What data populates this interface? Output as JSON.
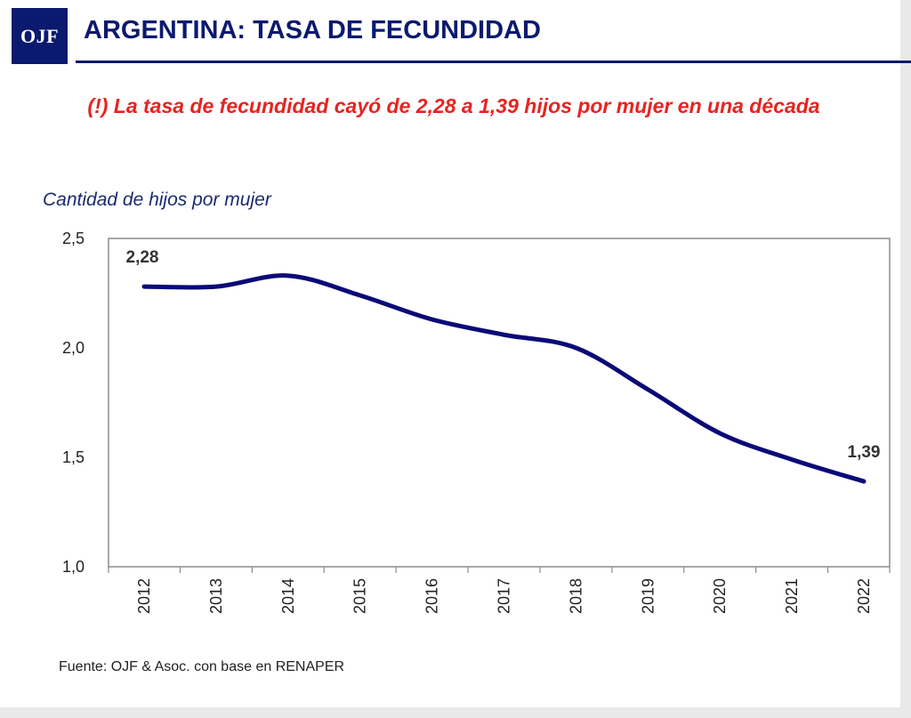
{
  "header": {
    "logo_text": "OJF",
    "title": "ARGENTINA: TASA DE FECUNDIDAD"
  },
  "subtitle": "(!) La tasa de fecundidad cayó de 2,28 a 1,39 hijos por mujer en una década",
  "source": "Fuente: OJF & Asoc. con base en RENAPER",
  "colors": {
    "navy": "#0a1a6e",
    "line": "#0a0a78",
    "headline_red": "#e8231f"
  },
  "chart_data": {
    "type": "line",
    "ylabel": "Cantidad de hijos por mujer",
    "x": [
      "2012",
      "2013",
      "2014",
      "2015",
      "2016",
      "2017",
      "2018",
      "2019",
      "2020",
      "2021",
      "2022"
    ],
    "series": [
      {
        "values": [
          2.28,
          2.28,
          2.33,
          2.24,
          2.13,
          2.06,
          2.0,
          1.81,
          1.61,
          1.49,
          1.39
        ]
      }
    ],
    "yticks": [
      "1,0",
      "1,5",
      "2,0",
      "2,5"
    ],
    "ylim": [
      1.0,
      2.5
    ],
    "data_labels": [
      {
        "index": 0,
        "text": "2,28"
      },
      {
        "index": 10,
        "text": "1,39"
      }
    ],
    "grid": false,
    "legend": "none"
  }
}
